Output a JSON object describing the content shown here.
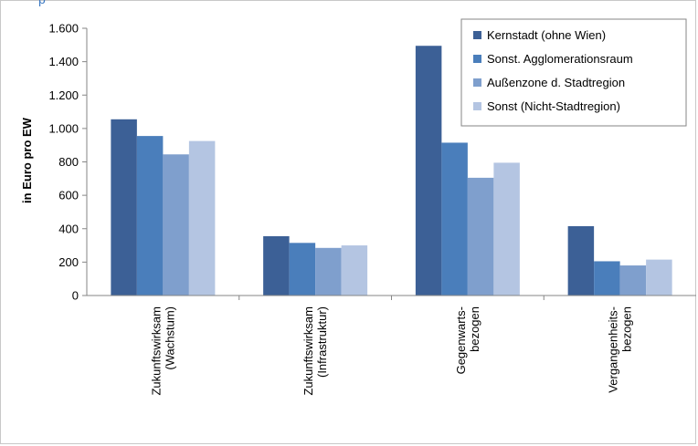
{
  "chart_data": {
    "type": "bar",
    "categories": [
      [
        "Zukunftswirksam",
        "(Wachstum)"
      ],
      [
        "Zukunftswirksam",
        "(Infrastruktur)"
      ],
      [
        "Gegenwarts-",
        "bezogen"
      ],
      [
        "Vergangenheits-",
        "bezogen"
      ]
    ],
    "series": [
      {
        "name": "Kernstadt (ohne Wien)",
        "color": "#3c6096",
        "values": [
          1055,
          355,
          1495,
          415
        ]
      },
      {
        "name": "Sonst. Agglomerationsraum",
        "color": "#4a7ebb",
        "values": [
          955,
          315,
          915,
          205
        ]
      },
      {
        "name": "Außenzone d. Stadtregion",
        "color": "#7f9fcd",
        "values": [
          845,
          285,
          705,
          180
        ]
      },
      {
        "name": "Sonst (Nicht-Stadtregion)",
        "color": "#b4c5e2",
        "values": [
          925,
          300,
          795,
          215
        ]
      }
    ],
    "ylabel": "in Euro pro EW",
    "ylim": [
      0,
      1600
    ],
    "yticks": [
      0,
      200,
      400,
      600,
      800,
      1000,
      1200,
      1400,
      1600
    ],
    "ytick_labels": [
      "0",
      "200",
      "400",
      "600",
      "800",
      "1.000",
      "1.200",
      "1.400",
      "1.600"
    ],
    "grid": false,
    "legend_position": "top-right"
  },
  "header_fragment": "p"
}
